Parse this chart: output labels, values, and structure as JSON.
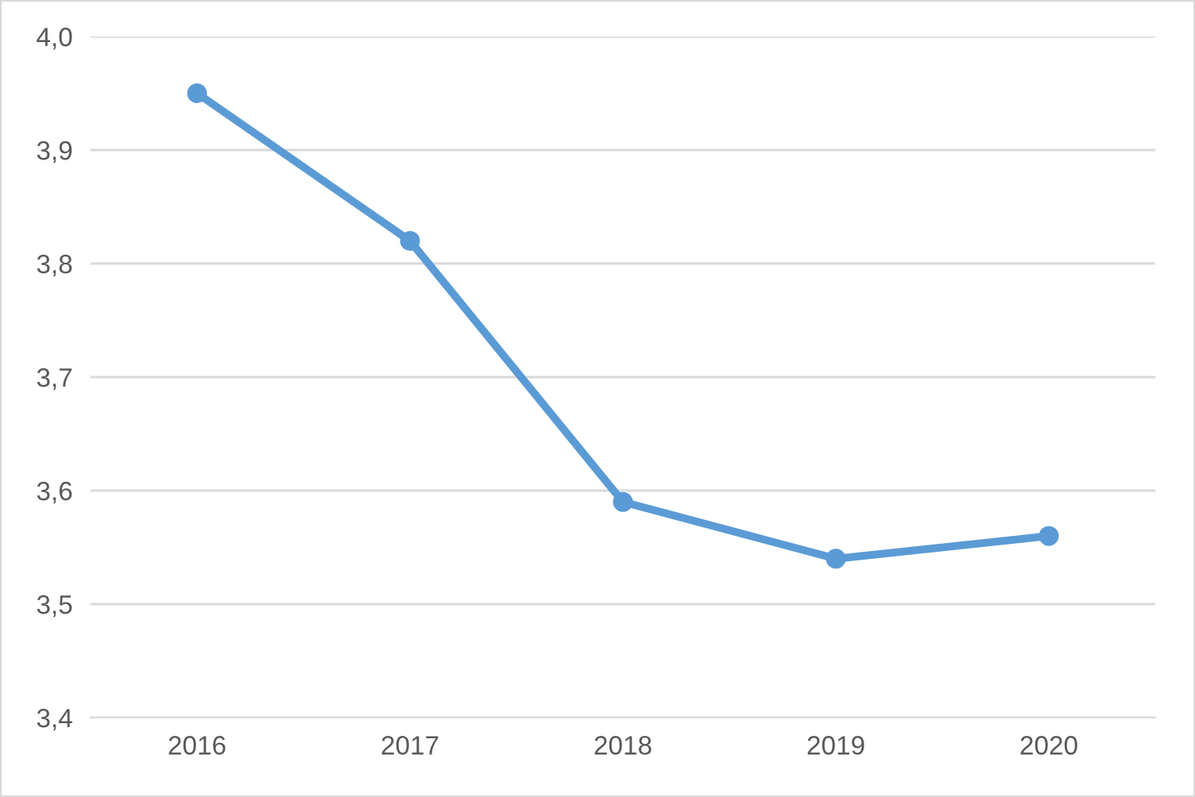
{
  "chart_data": {
    "type": "line",
    "categories": [
      "2016",
      "2017",
      "2018",
      "2019",
      "2020"
    ],
    "series": [
      {
        "color": "#5b9bd5",
        "values": [
          3.95,
          3.82,
          3.59,
          3.54,
          3.56
        ]
      }
    ],
    "ylim": [
      3.4,
      4.0
    ],
    "yticks": [
      {
        "value": 3.4,
        "label": "3,4"
      },
      {
        "value": 3.5,
        "label": "3,5"
      },
      {
        "value": 3.6,
        "label": "3,6"
      },
      {
        "value": 3.7,
        "label": "3,7"
      },
      {
        "value": 3.8,
        "label": "3,8"
      },
      {
        "value": 3.9,
        "label": "3,9"
      },
      {
        "value": 4.0,
        "label": "4,0"
      }
    ],
    "grid": "y",
    "marker": "circle",
    "line_style": "solid"
  }
}
